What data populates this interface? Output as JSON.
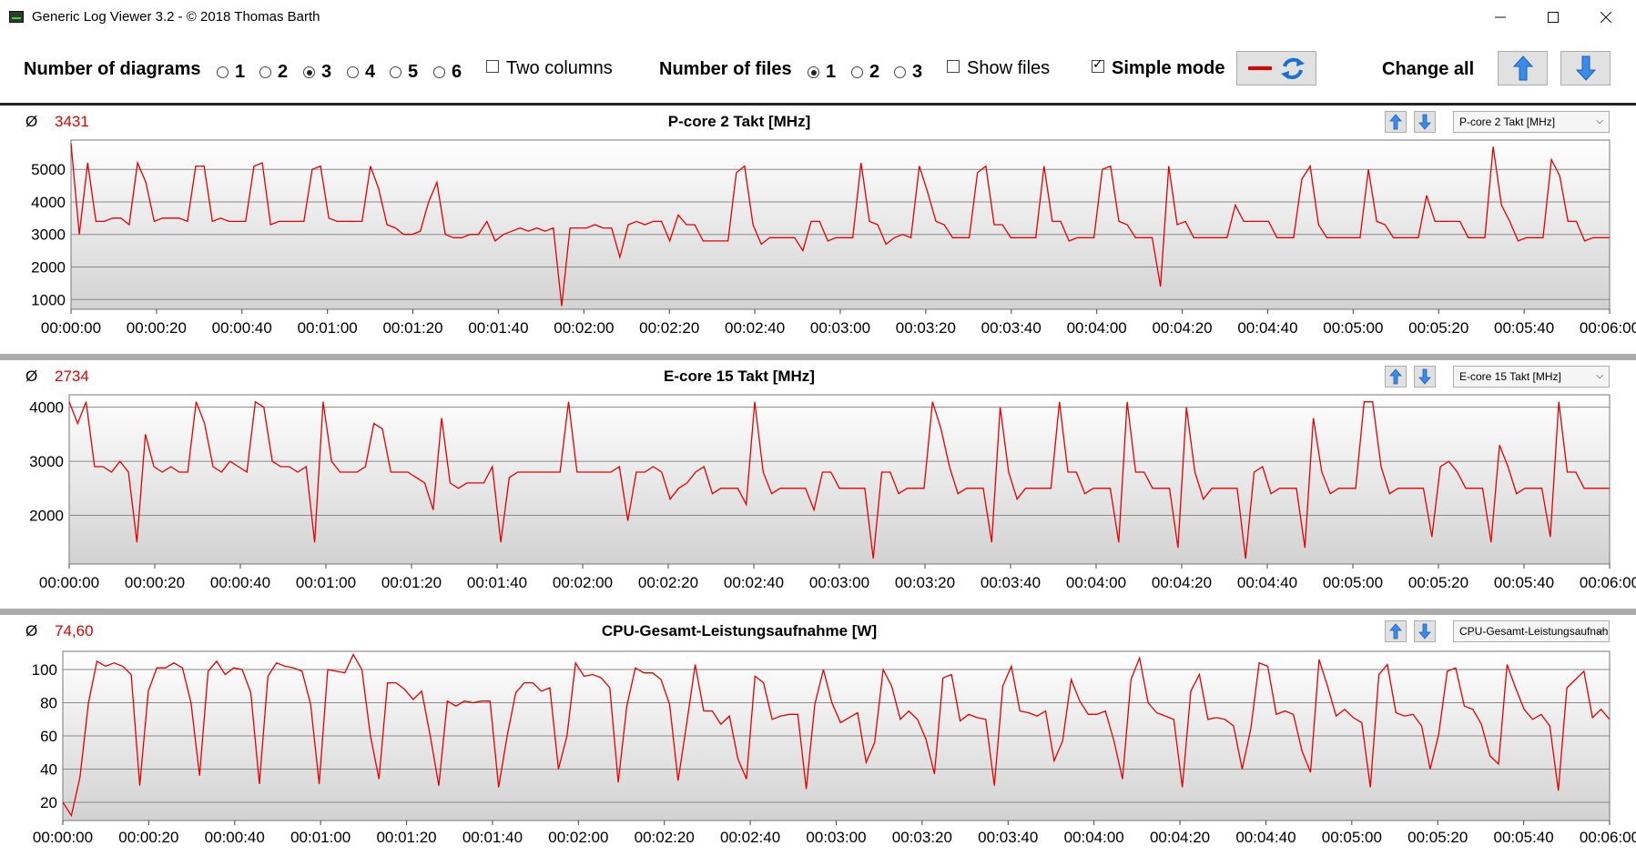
{
  "window": {
    "title": "Generic Log Viewer 3.2 - © 2018 Thomas Barth",
    "minimize_icon": "minimize-icon",
    "maximize_icon": "maximize-icon",
    "close_icon": "close-icon"
  },
  "toolbar": {
    "num_diagrams_label": "Number of diagrams",
    "diagram_options": [
      "1",
      "2",
      "3",
      "4",
      "5",
      "6"
    ],
    "diagram_selected": "3",
    "two_columns_label": "Two columns",
    "two_columns_checked": false,
    "num_files_label": "Number of files",
    "file_options": [
      "1",
      "2",
      "3"
    ],
    "file_selected": "1",
    "show_files_label": "Show files",
    "show_files_checked": false,
    "simple_mode_label": "Simple mode",
    "simple_mode_checked": true,
    "change_all_label": "Change all",
    "line_color": "#e60000"
  },
  "chart_data": [
    {
      "type": "line",
      "title": "P-core 2 Takt [MHz]",
      "average_label": "Ø",
      "average": "3431",
      "select_value": "P-core 2 Takt [MHz]",
      "color": "#e60000",
      "ylim": [
        700,
        5900
      ],
      "yticks": [
        1000,
        2000,
        3000,
        4000,
        5000
      ],
      "xlim": [
        0,
        364
      ],
      "xticks": [
        "00:00:00",
        "00:00:20",
        "00:00:40",
        "00:01:00",
        "00:01:20",
        "00:01:40",
        "00:02:00",
        "00:02:20",
        "00:02:40",
        "00:03:00",
        "00:03:20",
        "00:03:40",
        "00:04:00",
        "00:04:20",
        "00:04:40",
        "00:05:00",
        "00:05:20",
        "00:05:40",
        "00:06:00"
      ],
      "values": [
        5800,
        3000,
        5200,
        3400,
        3400,
        3500,
        3500,
        3300,
        5200,
        4600,
        3400,
        3500,
        3500,
        3500,
        3400,
        5100,
        5100,
        3400,
        3500,
        3400,
        3400,
        3400,
        5100,
        5200,
        3300,
        3400,
        3400,
        3400,
        3400,
        5000,
        5100,
        3500,
        3400,
        3400,
        3400,
        3400,
        5100,
        4400,
        3300,
        3200,
        3000,
        3000,
        3100,
        4000,
        4600,
        3000,
        2900,
        2900,
        3000,
        3000,
        3400,
        2800,
        3000,
        3100,
        3200,
        3100,
        3200,
        3100,
        3200,
        800,
        3200,
        3200,
        3200,
        3300,
        3200,
        3200,
        2300,
        3300,
        3400,
        3300,
        3400,
        3400,
        2800,
        3600,
        3300,
        3300,
        2800,
        2800,
        2800,
        2800,
        4900,
        5100,
        3300,
        2700,
        2900,
        2900,
        2900,
        2900,
        2500,
        3400,
        3400,
        2800,
        2900,
        2900,
        2900,
        5200,
        3400,
        3300,
        2700,
        2900,
        3000,
        2900,
        5100,
        4300,
        3400,
        3300,
        2900,
        2900,
        2900,
        4900,
        5100,
        3300,
        3300,
        2900,
        2900,
        2900,
        2900,
        5100,
        3400,
        3400,
        2800,
        2900,
        2900,
        2900,
        5000,
        5100,
        3400,
        3300,
        2900,
        2900,
        2900,
        1400,
        5100,
        3300,
        3400,
        2900,
        2900,
        2900,
        2900,
        2900,
        3900,
        3400,
        3400,
        3400,
        3400,
        2900,
        2900,
        2900,
        4700,
        5100,
        3300,
        2900,
        2900,
        2900,
        2900,
        2900,
        5000,
        3400,
        3300,
        2900,
        2900,
        2900,
        2900,
        4200,
        3400,
        3400,
        3400,
        3400,
        2900,
        2900,
        2900,
        5700,
        3900,
        3400,
        2800,
        2900,
        2900,
        2900,
        5300,
        4800,
        3400,
        3400,
        2800,
        2900,
        2900,
        2900
      ]
    },
    {
      "type": "line",
      "title": "E-core 15 Takt [MHz]",
      "average_label": "Ø",
      "average": "2734",
      "select_value": "E-core 15 Takt [MHz]",
      "color": "#e60000",
      "ylim": [
        1100,
        4230
      ],
      "yticks": [
        2000,
        3000,
        4000
      ],
      "xlim": [
        0,
        364
      ],
      "xticks": [
        "00:00:00",
        "00:00:20",
        "00:00:40",
        "00:01:00",
        "00:01:20",
        "00:01:40",
        "00:02:00",
        "00:02:20",
        "00:02:40",
        "00:03:00",
        "00:03:20",
        "00:03:40",
        "00:04:00",
        "00:04:20",
        "00:04:40",
        "00:05:00",
        "00:05:20",
        "00:05:40",
        "00:06:00"
      ],
      "values": [
        4100,
        3700,
        4100,
        2900,
        2900,
        2800,
        3000,
        2800,
        1500,
        3500,
        2900,
        2800,
        2900,
        2800,
        2800,
        4100,
        3700,
        2900,
        2800,
        3000,
        2900,
        2800,
        4100,
        4000,
        3000,
        2900,
        2900,
        2800,
        2900,
        1500,
        4100,
        3000,
        2800,
        2800,
        2800,
        2900,
        3700,
        3600,
        2800,
        2800,
        2800,
        2700,
        2600,
        2100,
        3800,
        2600,
        2500,
        2600,
        2600,
        2600,
        2900,
        1500,
        2700,
        2800,
        2800,
        2800,
        2800,
        2800,
        2800,
        4100,
        2800,
        2800,
        2800,
        2800,
        2800,
        2900,
        1900,
        2800,
        2800,
        2900,
        2800,
        2300,
        2500,
        2600,
        2800,
        2900,
        2400,
        2500,
        2500,
        2500,
        2200,
        4100,
        2800,
        2400,
        2500,
        2500,
        2500,
        2500,
        2100,
        2800,
        2800,
        2500,
        2500,
        2500,
        2500,
        1200,
        2800,
        2800,
        2400,
        2500,
        2500,
        2500,
        4100,
        3600,
        2900,
        2400,
        2500,
        2500,
        2500,
        1500,
        4000,
        2800,
        2300,
        2500,
        2500,
        2500,
        2500,
        4100,
        2800,
        2800,
        2400,
        2500,
        2500,
        2500,
        1500,
        4100,
        2800,
        2800,
        2500,
        2500,
        2500,
        1400,
        4000,
        2800,
        2300,
        2500,
        2500,
        2500,
        2500,
        1200,
        2800,
        2900,
        2400,
        2500,
        2500,
        2500,
        1400,
        3800,
        2800,
        2400,
        2500,
        2500,
        2500,
        4100,
        4100,
        2900,
        2400,
        2500,
        2500,
        2500,
        2500,
        1600,
        2900,
        3000,
        2800,
        2500,
        2500,
        2500,
        1500,
        3300,
        2900,
        2400,
        2500,
        2500,
        2500,
        1600,
        4100,
        2800,
        2800,
        2500,
        2500,
        2500,
        2500
      ]
    },
    {
      "type": "line",
      "title": "CPU-Gesamt-Leistungsaufnahme [W]",
      "average_label": "Ø",
      "average": "74,60",
      "select_value": "CPU-Gesamt-Leistungsaufnahme [W]",
      "color": "#e60000",
      "ylim": [
        9,
        111
      ],
      "yticks": [
        20,
        40,
        60,
        80,
        100
      ],
      "xlim": [
        0,
        364
      ],
      "xticks": [
        "00:00:00",
        "00:00:20",
        "00:00:40",
        "00:01:00",
        "00:01:20",
        "00:01:40",
        "00:02:00",
        "00:02:20",
        "00:02:40",
        "00:03:00",
        "00:03:20",
        "00:03:40",
        "00:04:00",
        "00:04:20",
        "00:04:40",
        "00:05:00",
        "00:05:20",
        "00:05:40",
        "00:06:00"
      ],
      "values": [
        20,
        12,
        35,
        80,
        105,
        102,
        104,
        102,
        97,
        30,
        87,
        101,
        101,
        104,
        101,
        80,
        36,
        99,
        105,
        97,
        101,
        100,
        86,
        31,
        96,
        104,
        102,
        101,
        99,
        79,
        31,
        100,
        99,
        98,
        109,
        100,
        60,
        34,
        92,
        92,
        88,
        82,
        87,
        60,
        30,
        81,
        78,
        81,
        80,
        81,
        81,
        29,
        60,
        86,
        92,
        92,
        87,
        89,
        40,
        60,
        104,
        96,
        97,
        95,
        89,
        32,
        78,
        101,
        98,
        98,
        94,
        79,
        33,
        67,
        103,
        75,
        75,
        67,
        72,
        46,
        34,
        96,
        92,
        70,
        72,
        73,
        73,
        28,
        79,
        100,
        80,
        68,
        71,
        74,
        44,
        56,
        100,
        90,
        70,
        75,
        70,
        58,
        37,
        95,
        97,
        69,
        73,
        71,
        70,
        30,
        90,
        102,
        75,
        74,
        72,
        75,
        45,
        57,
        94,
        81,
        73,
        73,
        75,
        57,
        34,
        94,
        107,
        80,
        74,
        72,
        70,
        29,
        87,
        97,
        70,
        71,
        70,
        66,
        40,
        64,
        104,
        102,
        73,
        75,
        73,
        51,
        38,
        106,
        90,
        72,
        76,
        71,
        68,
        29,
        97,
        103,
        74,
        72,
        73,
        66,
        40,
        61,
        99,
        101,
        78,
        76,
        67,
        48,
        43,
        103,
        89,
        76,
        70,
        73,
        66,
        27,
        89,
        94,
        99,
        71,
        76,
        70
      ]
    }
  ]
}
